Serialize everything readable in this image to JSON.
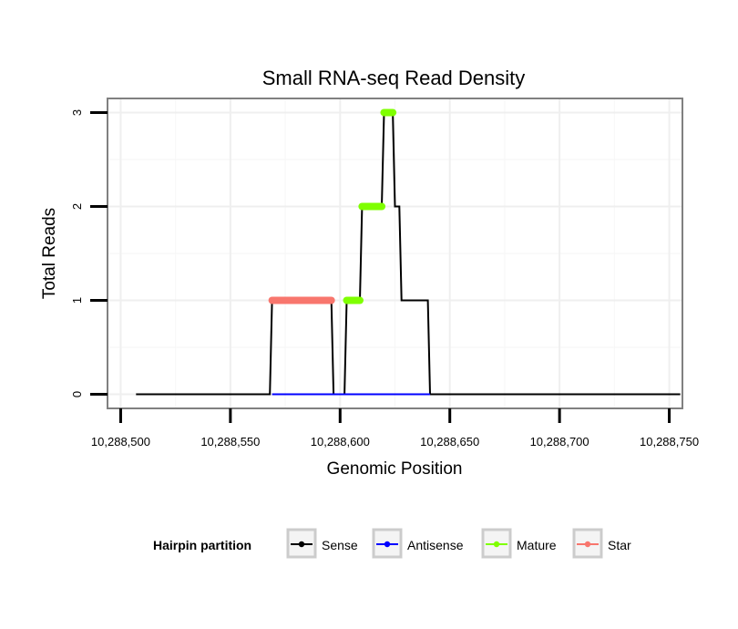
{
  "chart_data": {
    "type": "line",
    "title": "Small RNA-seq Read Density",
    "xlabel": "Genomic Position",
    "ylabel": "Total Reads",
    "xlim": [
      10288494,
      10288756
    ],
    "ylim": [
      -0.15,
      3.15
    ],
    "x_ticks": [
      10288500,
      10288550,
      10288600,
      10288650,
      10288700,
      10288750
    ],
    "x_tick_labels": [
      "10,288,500",
      "10,288,550",
      "10,288,600",
      "10,288,650",
      "10,288,700",
      "10,288,750"
    ],
    "y_ticks": [
      0,
      1,
      2,
      3
    ],
    "y_tick_labels": [
      "0",
      "1",
      "2",
      "3"
    ],
    "grid": true,
    "legend": {
      "title": "Hairpin partition",
      "position": "bottom",
      "entries": [
        "Sense",
        "Antisense",
        "Mature",
        "Star"
      ]
    },
    "series": [
      {
        "name": "Sense",
        "color": "#000000",
        "style": "step",
        "x": [
          10288507,
          10288568,
          10288569,
          10288596,
          10288597,
          10288602,
          10288603,
          10288609,
          10288610,
          10288619,
          10288620,
          10288624,
          10288625,
          10288627,
          10288628,
          10288640,
          10288641,
          10288755
        ],
        "y": [
          0,
          0,
          1,
          1,
          0,
          0,
          1,
          1,
          2,
          2,
          3,
          3,
          2,
          2,
          1,
          1,
          0,
          0
        ]
      },
      {
        "name": "Antisense",
        "color": "#0000ff",
        "style": "line",
        "x": [
          10288569,
          10288641
        ],
        "y": [
          0,
          0
        ]
      },
      {
        "name": "Mature",
        "color": "#7fff00",
        "style": "segments",
        "segments": [
          {
            "x": [
              10288603,
              10288609
            ],
            "y": 1
          },
          {
            "x": [
              10288610,
              10288619
            ],
            "y": 2
          },
          {
            "x": [
              10288620,
              10288624
            ],
            "y": 3
          }
        ]
      },
      {
        "name": "Star",
        "color": "#f8766d",
        "style": "segments",
        "segments": [
          {
            "x": [
              10288569,
              10288596
            ],
            "y": 1
          }
        ]
      }
    ]
  }
}
